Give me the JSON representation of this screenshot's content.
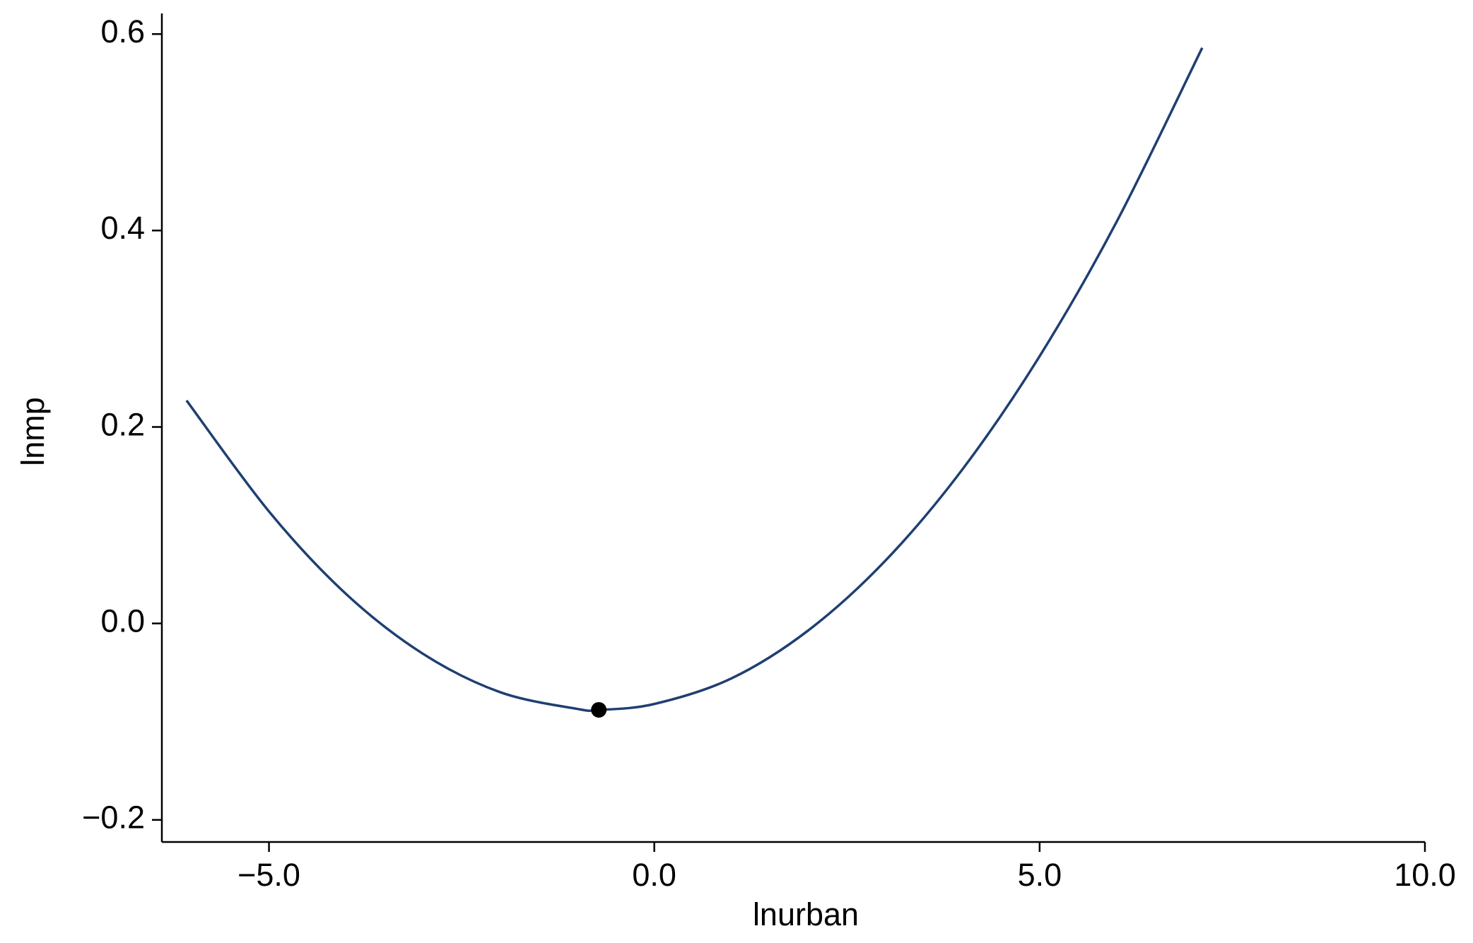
{
  "chart_data": {
    "type": "line",
    "x_label": "lnurban",
    "y_label": "lnmp",
    "x": [
      -6.07,
      -5,
      -4,
      -3,
      -2,
      -1,
      -0.72,
      0,
      1,
      2,
      3,
      4,
      5,
      6,
      7.11
    ],
    "series": [
      {
        "color": "#1f3f73",
        "values": [
          0.227,
          0.114,
          0.03,
          -0.031,
          -0.07,
          -0.087,
          -0.088,
          -0.082,
          -0.056,
          -0.007,
          0.064,
          0.157,
          0.272,
          0.409,
          0.586
        ]
      }
    ],
    "point": {
      "x": -0.72,
      "y": -0.088,
      "color": "#000000"
    },
    "xlim": [
      -6.39,
      10.0
    ],
    "ylim": [
      -0.2225,
      0.621
    ],
    "xticks": [
      {
        "value": -5,
        "label": "−5.0"
      },
      {
        "value": 0,
        "label": "0.0"
      },
      {
        "value": 5,
        "label": "5.0"
      },
      {
        "value": 10,
        "label": "10.0"
      }
    ],
    "yticks": [
      {
        "value": -0.2,
        "label": "−0.2"
      },
      {
        "value": 0,
        "label": "0.0"
      },
      {
        "value": 0.2,
        "label": "0.2"
      },
      {
        "value": 0.4,
        "label": "0.4"
      },
      {
        "value": 0.6,
        "label": "0.6"
      }
    ],
    "grid": false
  }
}
